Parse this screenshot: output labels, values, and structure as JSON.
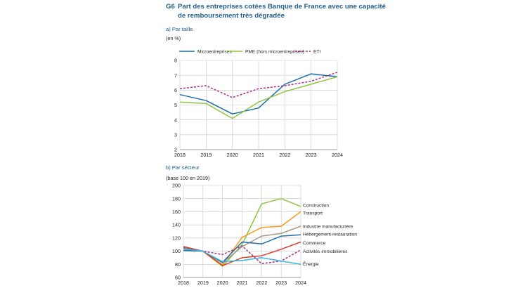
{
  "figure": {
    "number": "G6",
    "title_line1": "Part des entreprises cotées Banque de France avec une capacité",
    "title_line2": "de remboursement très dégradée"
  },
  "chart_data": [
    {
      "type": "line",
      "panel_label": "a) Par taille",
      "unit_label": "(en %)",
      "categories": [
        "2018",
        "2019",
        "2020",
        "2021",
        "2022",
        "2023",
        "2024"
      ],
      "ylim": [
        2,
        8
      ],
      "yticks": [
        2,
        3,
        4,
        5,
        6,
        7,
        8
      ],
      "grid": true,
      "legend_position": "top",
      "series": [
        {
          "name": "Microentreprises",
          "color": "#1f6fa6",
          "dash": false,
          "values": [
            5.7,
            5.3,
            4.4,
            4.8,
            6.4,
            7.1,
            6.9
          ]
        },
        {
          "name": "PME (hors microentreprises)",
          "color": "#8cc63f",
          "dash": false,
          "values": [
            5.2,
            5.1,
            4.1,
            5.2,
            5.9,
            6.4,
            6.9
          ]
        },
        {
          "name": "ETI",
          "color": "#a3308f",
          "dash": true,
          "values": [
            6.1,
            6.3,
            5.5,
            6.1,
            6.3,
            6.6,
            7.2
          ]
        }
      ]
    },
    {
      "type": "line",
      "panel_label": "b) Par secteur",
      "unit_label": "(base 100 en 2019)",
      "categories": [
        "2018",
        "2019",
        "2020",
        "2021",
        "2022",
        "2023",
        "2024"
      ],
      "ylim": [
        60,
        200
      ],
      "yticks": [
        60,
        80,
        100,
        120,
        140,
        160,
        180,
        200
      ],
      "grid": true,
      "legend_position": "right",
      "series": [
        {
          "name": "Construction",
          "label_y": 170,
          "color": "#8cc63f",
          "dash": false,
          "values": [
            106,
            100,
            77,
            110,
            172,
            180,
            168
          ]
        },
        {
          "name": "Transport",
          "label_y": 158,
          "color": "#f39c1f",
          "dash": false,
          "values": [
            104,
            100,
            79,
            121,
            136,
            138,
            160
          ]
        },
        {
          "name": "Industrie manufacturière",
          "label_y": 138,
          "color": "#a5968a",
          "dash": false,
          "values": [
            103,
            100,
            82,
            107,
            123,
            127,
            138
          ]
        },
        {
          "name": "Hébergement-restauration",
          "label_y": 126,
          "color": "#1f6fa6",
          "dash": false,
          "values": [
            101,
            100,
            83,
            114,
            111,
            123,
            125
          ]
        },
        {
          "name": "Commerce",
          "label_y": 113,
          "color": "#e23a2e",
          "dash": false,
          "values": [
            107,
            100,
            78,
            90,
            93,
            103,
            114
          ]
        },
        {
          "name": "Activités immobilières",
          "label_y": 100,
          "color": "#a3308f",
          "dash": true,
          "values": [
            105,
            100,
            95,
            108,
            81,
            85,
            102
          ]
        },
        {
          "name": "Énergie",
          "label_y": 81,
          "color": "#36b6e0",
          "dash": false,
          "values": [
            104,
            100,
            84,
            86,
            90,
            85,
            80
          ]
        }
      ]
    }
  ]
}
